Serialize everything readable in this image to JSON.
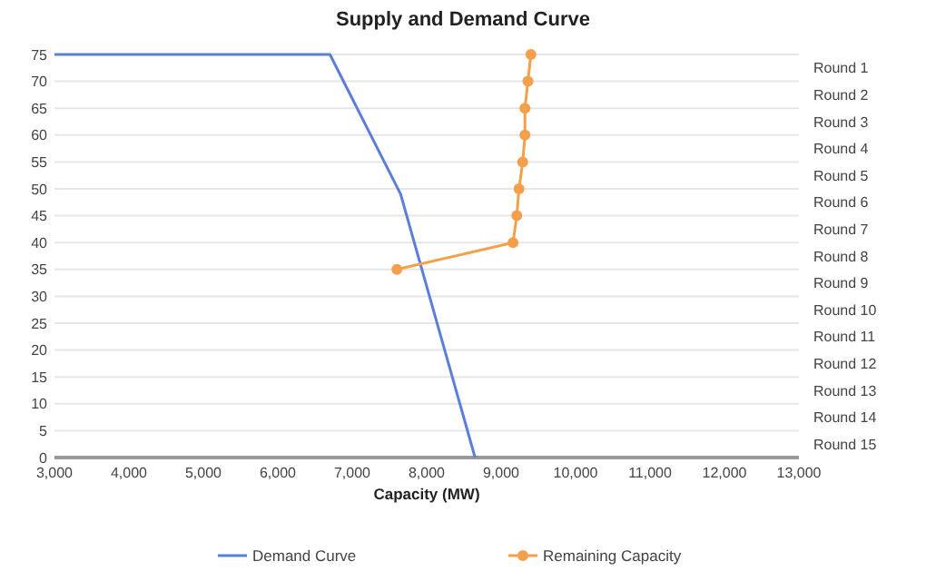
{
  "chart_data": {
    "type": "line",
    "title": "Supply and Demand Curve",
    "xlabel": "Capacity (MW)",
    "xlim": [
      3000,
      13000
    ],
    "xticks": [
      {
        "value": 3000,
        "label": "3,000"
      },
      {
        "value": 4000,
        "label": "4,000"
      },
      {
        "value": 5000,
        "label": "5,000"
      },
      {
        "value": 6000,
        "label": "6,000"
      },
      {
        "value": 7000,
        "label": "7,000"
      },
      {
        "value": 8000,
        "label": "8,000"
      },
      {
        "value": 9000,
        "label": "9,000"
      },
      {
        "value": 10000,
        "label": "10,000"
      },
      {
        "value": 11000,
        "label": "11,000"
      },
      {
        "value": 12000,
        "label": "12,000"
      },
      {
        "value": 13000,
        "label": "13,000"
      }
    ],
    "ylim": [
      0,
      75
    ],
    "yticks": [
      0,
      5,
      10,
      15,
      20,
      25,
      30,
      35,
      40,
      45,
      50,
      55,
      60,
      65,
      70,
      75
    ],
    "y2_categories": [
      "Round 1",
      "Round 2",
      "Round 3",
      "Round 4",
      "Round 5",
      "Round 6",
      "Round 7",
      "Round 8",
      "Round 9",
      "Round 10",
      "Round 11",
      "Round 12",
      "Round 13",
      "Round 14",
      "Round 15"
    ],
    "grid": "y",
    "legend": "bottom",
    "series": [
      {
        "name": "Demand Curve",
        "color": "#5b7fd9",
        "marker": "none",
        "x": [
          3000,
          6700,
          7650,
          8650
        ],
        "values": [
          75,
          75,
          49,
          0
        ]
      },
      {
        "name": "Remaining Capacity",
        "color": "#f4a04a",
        "marker": "circle",
        "x": [
          9400,
          9360,
          9320,
          9320,
          9290,
          9240,
          9210,
          9160,
          7600
        ],
        "values": [
          75,
          70,
          65,
          60,
          55,
          50,
          45,
          40,
          35
        ]
      }
    ]
  }
}
